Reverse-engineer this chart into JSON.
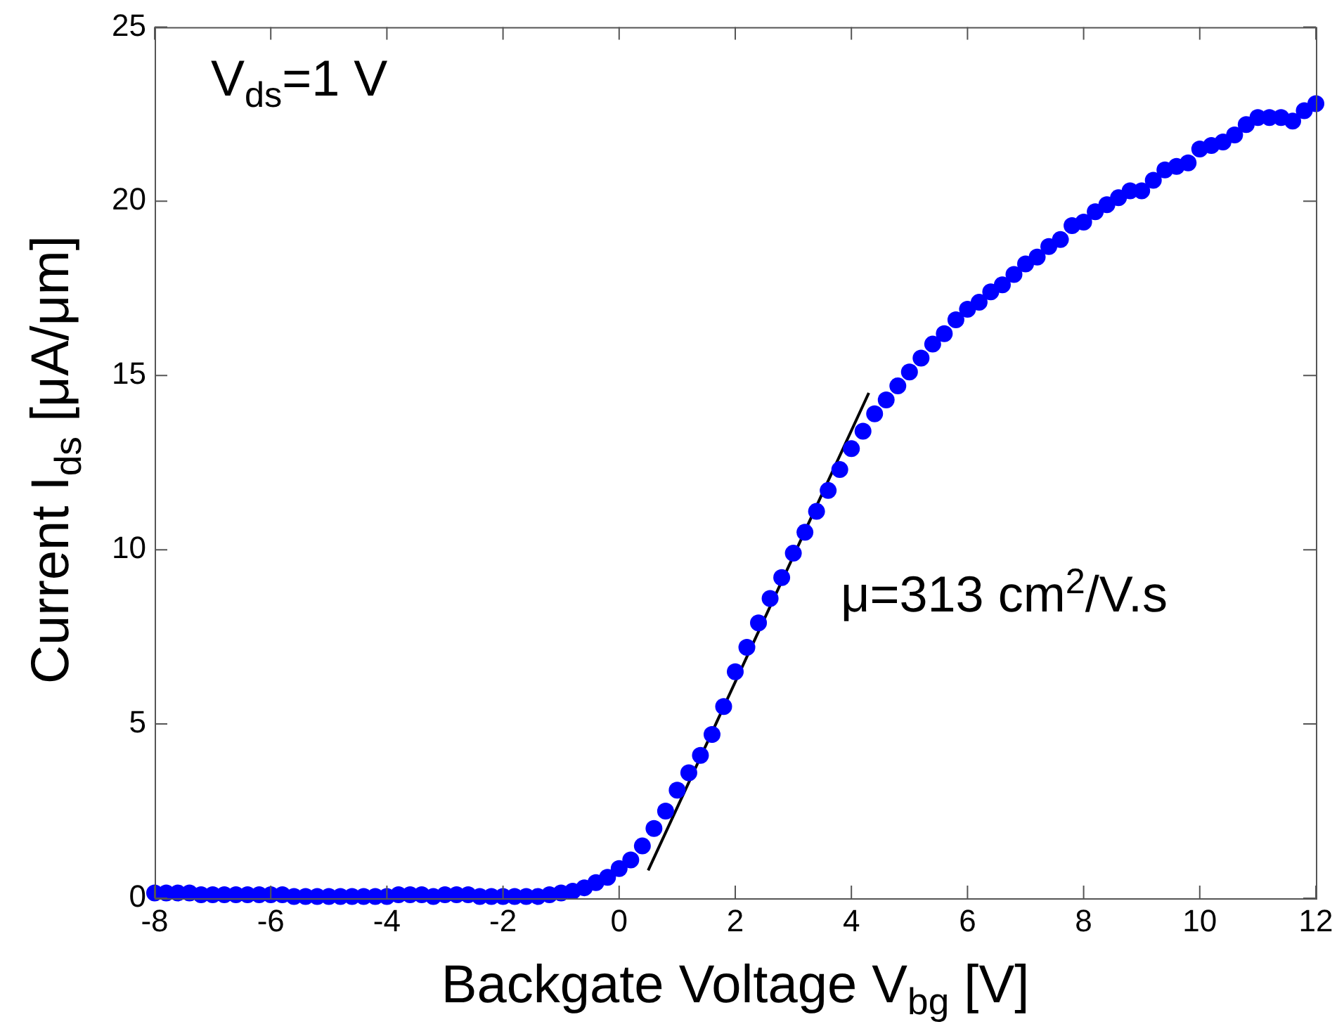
{
  "chart_data": {
    "type": "scatter",
    "xlabel": "Backgate Voltage V$_{bg}$ [V]",
    "ylabel": "Current I$_{ds}$ [μA/μm]",
    "annotations": [
      "V$_{ds}$=1 V",
      "μ=313 cm$^{2}$/V.s"
    ],
    "xlim": [
      -8,
      12
    ],
    "xticks": [
      -8,
      -6,
      -4,
      -2,
      0,
      2,
      4,
      6,
      8,
      10,
      12
    ],
    "ylim": [
      0,
      25
    ],
    "yticks": [
      0,
      5,
      10,
      15,
      20,
      25
    ],
    "grid": false,
    "legend": false,
    "marker": "circle",
    "series": [
      {
        "color": "#0000ff",
        "x": [
          -8,
          -7.8,
          -7.6,
          -7.4,
          -7.2,
          -7,
          -6.8,
          -6.6,
          -6.4,
          -6.2,
          -6,
          -5.8,
          -5.6,
          -5.4,
          -5.2,
          -5,
          -4.8,
          -4.6,
          -4.4,
          -4.2,
          -4,
          -3.8,
          -3.6,
          -3.4,
          -3.2,
          -3,
          -2.8,
          -2.6,
          -2.4,
          -2.2,
          -2,
          -1.8,
          -1.6,
          -1.4,
          -1.2,
          -1,
          -0.8,
          -0.6,
          -0.4,
          -0.2,
          0,
          0.2,
          0.4,
          0.6,
          0.8,
          1,
          1.2,
          1.4,
          1.6,
          1.8,
          2,
          2.2,
          2.4,
          2.6,
          2.8,
          3,
          3.2,
          3.4,
          3.6,
          3.8,
          4,
          4.2,
          4.4,
          4.6,
          4.8,
          5,
          5.2,
          5.4,
          5.6,
          5.8,
          6,
          6.2,
          6.4,
          6.6,
          6.8,
          7,
          7.2,
          7.4,
          7.6,
          7.8,
          8,
          8.2,
          8.4,
          8.6,
          8.8,
          9,
          9.2,
          9.4,
          9.6,
          9.8,
          10,
          10.2,
          10.4,
          10.6,
          10.8,
          11,
          11.2,
          11.4,
          11.6,
          11.8,
          12
        ],
        "values": [
          0.15,
          0.15,
          0.15,
          0.15,
          0.1,
          0.1,
          0.1,
          0.1,
          0.1,
          0.1,
          0.1,
          0.1,
          0.05,
          0.05,
          0.05,
          0.05,
          0.05,
          0.05,
          0.05,
          0.05,
          0.05,
          0.1,
          0.1,
          0.1,
          0.05,
          0.1,
          0.1,
          0.1,
          0.05,
          0.05,
          0.05,
          0.05,
          0.05,
          0.05,
          0.1,
          0.15,
          0.2,
          0.3,
          0.45,
          0.6,
          0.85,
          1.1,
          1.5,
          2,
          2.5,
          3.1,
          3.6,
          4.1,
          4.7,
          5.5,
          6.5,
          7.2,
          7.9,
          8.6,
          9.2,
          9.9,
          10.5,
          11.1,
          11.7,
          12.3,
          12.9,
          13.4,
          13.9,
          14.3,
          14.7,
          15.1,
          15.5,
          15.9,
          16.2,
          16.6,
          16.9,
          17.1,
          17.4,
          17.6,
          17.9,
          18.2,
          18.4,
          18.7,
          18.9,
          19.3,
          19.4,
          19.7,
          19.9,
          20.1,
          20.3,
          20.3,
          20.6,
          20.9,
          21,
          21.1,
          21.5,
          21.6,
          21.7,
          21.9,
          22.2,
          22.4,
          22.4,
          22.4,
          22.3,
          22.6,
          22.8
        ]
      },
      {
        "type": "line",
        "color": "#000000",
        "marker": "none",
        "x": [
          0.5,
          4.3
        ],
        "values": [
          0.8,
          14.5
        ]
      }
    ]
  }
}
